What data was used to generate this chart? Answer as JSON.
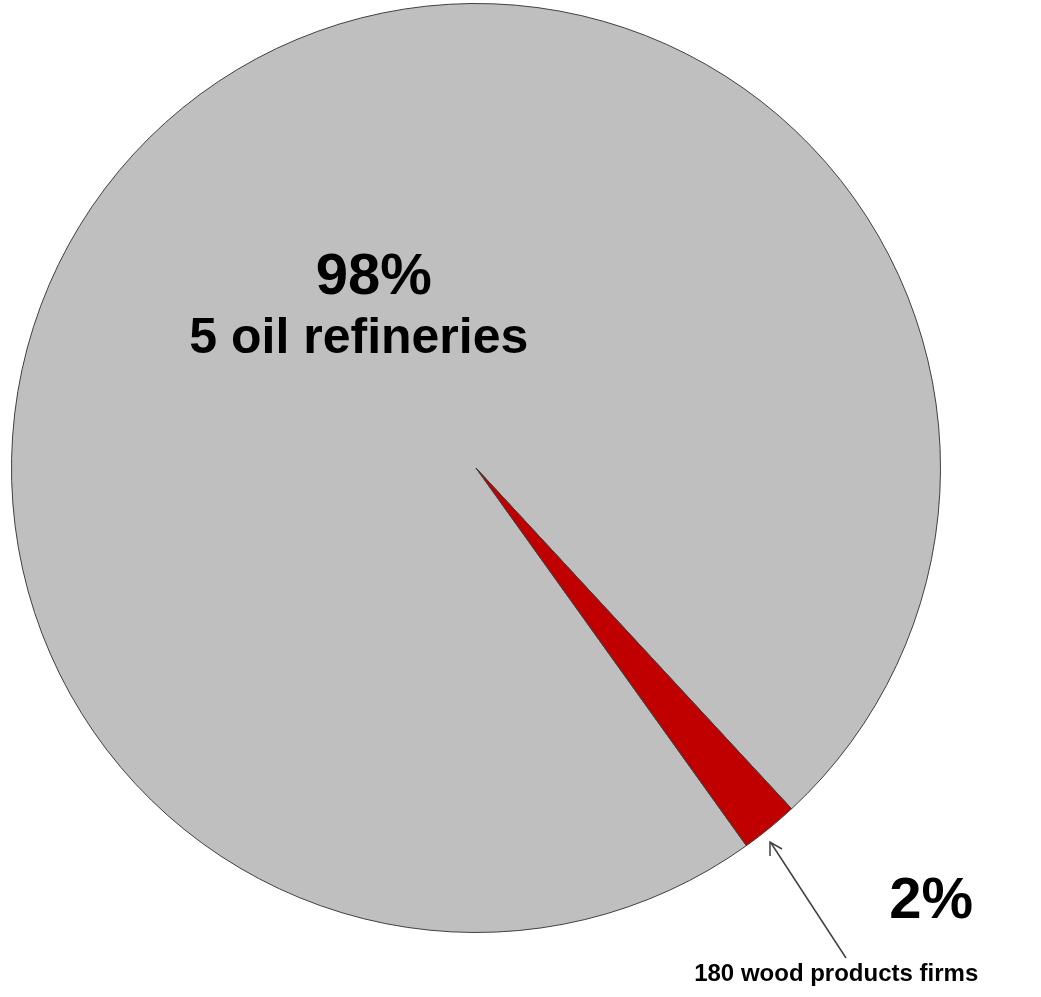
{
  "chart_data": {
    "type": "pie",
    "categories": [
      "5 oil refineries",
      "180 wood products firms"
    ],
    "values": [
      98,
      2
    ],
    "colors": [
      "#bfbfbf",
      "#c00000"
    ],
    "value_labels": [
      "98%",
      "2%"
    ],
    "legend": false
  }
}
